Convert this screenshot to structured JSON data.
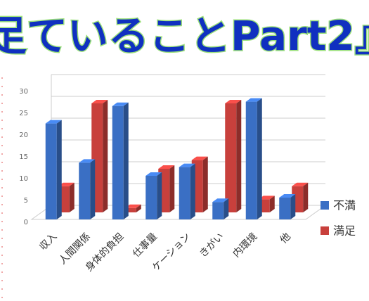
{
  "chart_data": {
    "type": "bar",
    "title": "足ていることPart2』",
    "categories": [
      "収入",
      "人間関係",
      "身体的負担",
      "仕事量",
      "ケーション",
      "きがい",
      "内環境",
      "他"
    ],
    "series": [
      {
        "name": "不満",
        "color": "#3a6fc4",
        "values": [
          22,
          13,
          26,
          10,
          12,
          4,
          27,
          5
        ]
      },
      {
        "name": "満足",
        "color": "#c8403c",
        "values": [
          6,
          25,
          1,
          10,
          12,
          25,
          3,
          6
        ]
      }
    ],
    "ylim": [
      0,
      30
    ],
    "yticks": [
      0,
      5,
      10,
      15,
      20,
      25,
      30
    ],
    "grid": true
  }
}
